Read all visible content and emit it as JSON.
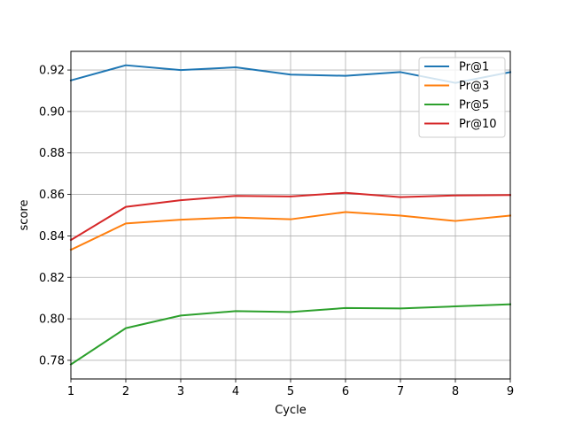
{
  "chart_data": {
    "type": "line",
    "title": "",
    "xlabel": "Cycle",
    "ylabel": "score",
    "x": [
      1,
      2,
      3,
      4,
      5,
      6,
      7,
      8,
      9
    ],
    "xlim": [
      1,
      9
    ],
    "ylim": [
      0.771,
      0.929
    ],
    "xticks": [
      "1",
      "2",
      "3",
      "4",
      "5",
      "6",
      "7",
      "8",
      "9"
    ],
    "yticks": [
      "0.78",
      "0.80",
      "0.82",
      "0.84",
      "0.86",
      "0.88",
      "0.90",
      "0.92"
    ],
    "grid": true,
    "legend_position": "top-right",
    "series": [
      {
        "name": "Pr@1",
        "color": "#1f77b4",
        "values": [
          0.915,
          0.9223,
          0.92,
          0.9213,
          0.9178,
          0.9172,
          0.919,
          0.9138,
          0.919
        ]
      },
      {
        "name": "Pr@3",
        "color": "#ff7f0e",
        "values": [
          0.8333,
          0.846,
          0.8478,
          0.8489,
          0.848,
          0.8515,
          0.8498,
          0.8472,
          0.8498
        ]
      },
      {
        "name": "Pr@5",
        "color": "#2ca02c",
        "values": [
          0.778,
          0.7955,
          0.8016,
          0.8037,
          0.8033,
          0.8052,
          0.805,
          0.806,
          0.807
        ]
      },
      {
        "name": "Pr@10",
        "color": "#d62728",
        "values": [
          0.838,
          0.854,
          0.8572,
          0.8593,
          0.859,
          0.8608,
          0.8587,
          0.8595,
          0.8597
        ]
      }
    ]
  }
}
